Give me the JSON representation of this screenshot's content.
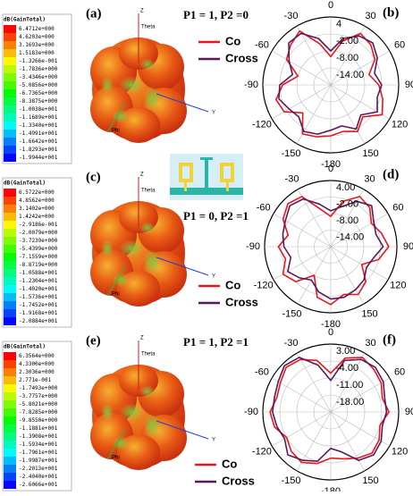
{
  "patterns": [
    {
      "label": "(a)",
      "excitation": "P1 = 1, P2 =0",
      "colorbar_title": "dB(GainTotal)",
      "colorbar_labels": [
        "6.4712e+000",
        "4.6203e+000",
        "3.1693e+000",
        "1.5183e+000",
        "-1.3266e-001",
        "-1.7836e+000",
        "-3.4346e+000",
        "-5.0856e+000",
        "-6.7365e+000",
        "-8.3875e+000",
        "-1.0038e+001",
        "-1.1689e+001",
        "-1.3340e+001",
        "-1.4991e+001",
        "-1.6642e+001",
        "-1.8293e+001",
        "-1.9944e+001"
      ],
      "axis_labels": [
        "Z",
        "Theta",
        "Y",
        "Phi"
      ]
    },
    {
      "label": "(c)",
      "excitation": "P1 = 0, P2 =1",
      "colorbar_title": "dB(GainTotal)",
      "colorbar_labels": [
        "6.5722e+000",
        "4.8562e+000",
        "3.1402e+000",
        "1.4242e+000",
        "-2.9186e-001",
        "-2.0079e+000",
        "-3.7239e+000",
        "-5.4399e+000",
        "-7.1559e+000",
        "-8.8719e+000",
        "-1.0588e+001",
        "-1.2304e+001",
        "-1.4020e+001",
        "-1.5736e+001",
        "-1.7452e+001",
        "-1.9168e+001",
        "-2.0884e+001"
      ],
      "axis_labels": [
        "Z",
        "Theta",
        "Y",
        "Phi"
      ]
    },
    {
      "label": "(e)",
      "excitation": "P1 = 1, P2 =1",
      "colorbar_title": "dB(GainTotal)",
      "colorbar_labels": [
        "6.3564e+000",
        "4.3300e+000",
        "2.3036e+000",
        "2.771e-001",
        "-1.7493e+000",
        "-3.7757e+000",
        "-5.8021e+000",
        "-7.8285e+000",
        "-9.8550e+000",
        "-1.1881e+001",
        "-1.3908e+001",
        "-1.5934e+001",
        "-1.7961e+001",
        "-1.9987e+001",
        "-2.2013e+001",
        "-2.4040e+001",
        "-2.6066e+001"
      ],
      "axis_labels": [
        "Z",
        "Theta",
        "Y",
        "Phi"
      ]
    }
  ],
  "chart_data": [
    {
      "type": "polar",
      "label": "(b)",
      "theta": [
        -180,
        -165,
        -150,
        -135,
        -120,
        -105,
        -90,
        -75,
        -60,
        -45,
        -30,
        -15,
        0,
        15,
        30,
        45,
        60,
        75,
        90,
        105,
        120,
        135,
        150,
        165
      ],
      "rlim": [
        -20,
        4
      ],
      "rticks": [
        4,
        {
          "value": -2,
          "label": "-2.00"
        },
        {
          "value": -8,
          "label": "-8.00"
        },
        {
          "value": -14,
          "label": "-14.00"
        }
      ],
      "thetaticks": [
        0,
        30,
        60,
        90,
        120,
        150,
        -180,
        -150,
        -120,
        -90,
        -60,
        -30
      ],
      "series": [
        {
          "name": "Co",
          "color": "#e8161e",
          "values": [
            -2,
            -1,
            0,
            -6,
            -1,
            0,
            -3,
            -8,
            -2,
            0,
            2,
            -5,
            -10,
            -4,
            1,
            0,
            -2,
            -6,
            -3,
            -1,
            1,
            -4,
            -1,
            -3
          ]
        },
        {
          "name": "Cross",
          "color": "#5a1a5a",
          "values": [
            -4,
            -2,
            -1,
            -4,
            -3,
            -1,
            -2,
            -6,
            -3,
            1,
            1,
            -3,
            -8,
            -3,
            0,
            1,
            -1,
            -4,
            -2,
            -3,
            -1,
            -5,
            -2,
            -5
          ]
        }
      ]
    },
    {
      "type": "polar",
      "label": "(d)",
      "theta": [
        -180,
        -165,
        -150,
        -135,
        -120,
        -105,
        -90,
        -75,
        -60,
        -45,
        -30,
        -15,
        0,
        15,
        30,
        45,
        60,
        75,
        90,
        105,
        120,
        135,
        150,
        165
      ],
      "rlim": [
        -20,
        4
      ],
      "rticks": [
        {
          "value": 4,
          "label": "4.00"
        },
        {
          "value": -2,
          "label": "-2.00"
        },
        {
          "value": -8,
          "label": "-8.00"
        },
        {
          "value": -14,
          "label": "-14.00"
        }
      ],
      "thetaticks": [
        0,
        30,
        60,
        90,
        120,
        150,
        -180,
        -150,
        -120,
        -90,
        -60,
        -30
      ],
      "series": [
        {
          "name": "Co",
          "color": "#e8161e",
          "values": [
            1,
            -1,
            -8,
            -2,
            0,
            -3,
            -1,
            -4,
            0,
            2,
            1,
            -6,
            -9,
            -3,
            1,
            0,
            -3,
            -1,
            1,
            -2,
            -7,
            -2,
            0,
            -2
          ]
        },
        {
          "name": "Cross",
          "color": "#5a1a5a",
          "values": [
            -1,
            -3,
            -6,
            -4,
            -2,
            -5,
            -3,
            -2,
            -1,
            1,
            0,
            -4,
            -7,
            -5,
            -1,
            1,
            -2,
            -3,
            -1,
            -4,
            -5,
            -3,
            -2,
            -1
          ]
        }
      ]
    },
    {
      "type": "polar",
      "label": "(f)",
      "theta": [
        -180,
        -165,
        -150,
        -135,
        -120,
        -105,
        -90,
        -75,
        -60,
        -45,
        -30,
        -15,
        0,
        15,
        30,
        45,
        60,
        75,
        90,
        105,
        120,
        135,
        150,
        165
      ],
      "rlim": [
        -25,
        3
      ],
      "rticks": [
        {
          "value": 3,
          "label": "3.00"
        },
        {
          "value": -4,
          "label": "-4.00"
        },
        {
          "value": -11,
          "label": "-11.00"
        },
        {
          "value": -18,
          "label": "-18.00"
        }
      ],
      "thetaticks": [
        0,
        30,
        60,
        90,
        120,
        150,
        -180,
        -150,
        -120,
        -90,
        -60,
        -30
      ],
      "series": [
        {
          "name": "Co",
          "color": "#e8161e",
          "values": [
            -6,
            -3,
            -1,
            -2,
            -4,
            -1,
            0,
            -2,
            -1,
            1,
            0,
            -3,
            -9,
            -2,
            1,
            0,
            -1,
            -3,
            -1,
            -4,
            -2,
            -1,
            -3,
            -5
          ]
        },
        {
          "name": "Cross",
          "color": "#5a1a5a",
          "values": [
            -10,
            -4,
            -2,
            0,
            -3,
            -2,
            -1,
            -1,
            0,
            2,
            1,
            -5,
            -12,
            -3,
            0,
            1,
            0,
            -2,
            -2,
            -3,
            -1,
            0,
            -2,
            -8
          ]
        }
      ]
    }
  ]
}
